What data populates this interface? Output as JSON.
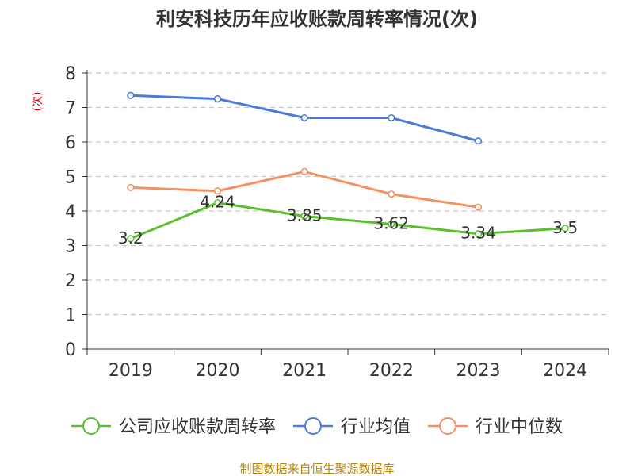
{
  "chart_data": {
    "type": "line",
    "title": "利安科技历年应收账款周转率情况(次)",
    "ylabel": "(次)",
    "xlabel": "",
    "categories": [
      "2019",
      "2020",
      "2021",
      "2022",
      "2023",
      "2024"
    ],
    "ylim": [
      0,
      8
    ],
    "yticks": [
      0,
      1,
      2,
      3,
      4,
      5,
      6,
      7,
      8
    ],
    "grid": true,
    "legend_position": "bottom",
    "series": [
      {
        "name": "公司应收账款周转率",
        "color": "#5cc02e",
        "values": [
          3.2,
          4.24,
          3.85,
          3.62,
          3.34,
          3.5
        ],
        "labels": [
          "3.2",
          "4.24",
          "3.85",
          "3.62",
          "3.34",
          "3.5"
        ]
      },
      {
        "name": "行业均值",
        "color": "#4b7bd8",
        "values": [
          7.35,
          7.25,
          6.7,
          6.7,
          6.03,
          null
        ],
        "labels": null
      },
      {
        "name": "行业中位数",
        "color": "#f39162",
        "values": [
          4.68,
          4.58,
          5.14,
          4.49,
          4.11,
          null
        ],
        "labels": null
      }
    ]
  },
  "source": "制图数据来自恒生聚源数据库"
}
